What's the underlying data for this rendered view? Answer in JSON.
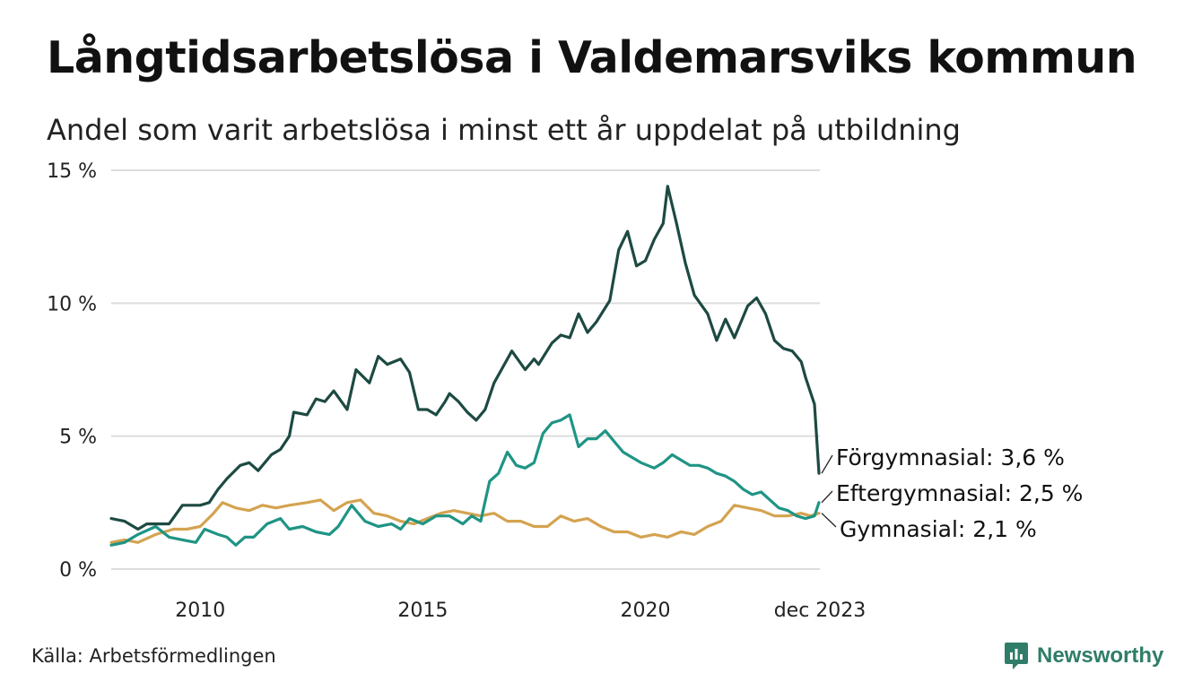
{
  "title": "Långtidsarbetslösa i Valdemarsviks kommun",
  "subtitle": "Andel som varit arbetslösa i minst ett år uppdelat på utbildning",
  "source": "Källa: Arbetsförmedlingen",
  "brand": "Newsworthy",
  "colors": {
    "forgymnasial": "#1d4a42",
    "eftergymnasial": "#1f9485",
    "gymnasial": "#d4a350",
    "grid": "#dddddd",
    "brand": "#2f7d68"
  },
  "chart_data": {
    "type": "line",
    "title": "Långtidsarbetslösa i Valdemarsviks kommun",
    "subtitle": "Andel som varit arbetslösa i minst ett år uppdelat på utbildning",
    "x_range": [
      2008.0,
      2023.92
    ],
    "ylim": [
      0,
      15
    ],
    "y_ticks": [
      {
        "value": 0,
        "label": "0 %"
      },
      {
        "value": 5,
        "label": "5 %"
      },
      {
        "value": 10,
        "label": "10 %"
      },
      {
        "value": 15,
        "label": "15 %"
      }
    ],
    "x_ticks": [
      {
        "value": 2010,
        "label": "2010"
      },
      {
        "value": 2015,
        "label": "2015"
      },
      {
        "value": 2020,
        "label": "2020"
      },
      {
        "value": 2023.92,
        "label": "dec 2023"
      }
    ],
    "series": [
      {
        "key": "forgymnasial",
        "name": "Förgymnasial",
        "end_label": "Förgymnasial: 3,6 %",
        "points": [
          [
            2008.0,
            1.9
          ],
          [
            2008.3,
            1.8
          ],
          [
            2008.6,
            1.5
          ],
          [
            2008.8,
            1.7
          ],
          [
            2009.3,
            1.7
          ],
          [
            2009.6,
            2.4
          ],
          [
            2010.0,
            2.4
          ],
          [
            2010.2,
            2.5
          ],
          [
            2010.4,
            3.0
          ],
          [
            2010.6,
            3.4
          ],
          [
            2010.9,
            3.9
          ],
          [
            2011.1,
            4.0
          ],
          [
            2011.3,
            3.7
          ],
          [
            2011.6,
            4.3
          ],
          [
            2011.8,
            4.5
          ],
          [
            2012.0,
            5.0
          ],
          [
            2012.1,
            5.9
          ],
          [
            2012.4,
            5.8
          ],
          [
            2012.6,
            6.4
          ],
          [
            2012.8,
            6.3
          ],
          [
            2013.0,
            6.7
          ],
          [
            2013.3,
            6.0
          ],
          [
            2013.5,
            7.5
          ],
          [
            2013.8,
            7.0
          ],
          [
            2014.0,
            8.0
          ],
          [
            2014.2,
            7.7
          ],
          [
            2014.5,
            7.9
          ],
          [
            2014.7,
            7.4
          ],
          [
            2014.9,
            6.0
          ],
          [
            2015.1,
            6.0
          ],
          [
            2015.3,
            5.8
          ],
          [
            2015.5,
            6.3
          ],
          [
            2015.6,
            6.6
          ],
          [
            2015.8,
            6.3
          ],
          [
            2016.0,
            5.9
          ],
          [
            2016.2,
            5.6
          ],
          [
            2016.4,
            6.0
          ],
          [
            2016.6,
            7.0
          ],
          [
            2016.8,
            7.6
          ],
          [
            2017.0,
            8.2
          ],
          [
            2017.3,
            7.5
          ],
          [
            2017.5,
            7.9
          ],
          [
            2017.6,
            7.7
          ],
          [
            2017.9,
            8.5
          ],
          [
            2018.1,
            8.8
          ],
          [
            2018.3,
            8.7
          ],
          [
            2018.5,
            9.6
          ],
          [
            2018.7,
            8.9
          ],
          [
            2018.9,
            9.3
          ],
          [
            2019.2,
            10.1
          ],
          [
            2019.4,
            12.0
          ],
          [
            2019.6,
            12.7
          ],
          [
            2019.8,
            11.4
          ],
          [
            2020.0,
            11.6
          ],
          [
            2020.2,
            12.4
          ],
          [
            2020.4,
            13.0
          ],
          [
            2020.5,
            14.4
          ],
          [
            2020.7,
            13.0
          ],
          [
            2020.9,
            11.5
          ],
          [
            2021.1,
            10.3
          ],
          [
            2021.4,
            9.6
          ],
          [
            2021.6,
            8.6
          ],
          [
            2021.8,
            9.4
          ],
          [
            2022.0,
            8.7
          ],
          [
            2022.3,
            9.9
          ],
          [
            2022.5,
            10.2
          ],
          [
            2022.7,
            9.6
          ],
          [
            2022.9,
            8.6
          ],
          [
            2023.1,
            8.3
          ],
          [
            2023.3,
            8.2
          ],
          [
            2023.5,
            7.8
          ],
          [
            2023.6,
            7.2
          ],
          [
            2023.8,
            6.2
          ],
          [
            2023.9,
            3.6
          ]
        ]
      },
      {
        "key": "eftergymnasial",
        "name": "Eftergymnasial",
        "end_label": "Eftergymnasial: 2,5 %",
        "points": [
          [
            2008.0,
            0.9
          ],
          [
            2008.3,
            1.0
          ],
          [
            2008.6,
            1.3
          ],
          [
            2009.0,
            1.6
          ],
          [
            2009.3,
            1.2
          ],
          [
            2009.6,
            1.1
          ],
          [
            2009.9,
            1.0
          ],
          [
            2010.1,
            1.5
          ],
          [
            2010.4,
            1.3
          ],
          [
            2010.6,
            1.2
          ],
          [
            2010.8,
            0.9
          ],
          [
            2011.0,
            1.2
          ],
          [
            2011.2,
            1.2
          ],
          [
            2011.5,
            1.7
          ],
          [
            2011.8,
            1.9
          ],
          [
            2012.0,
            1.5
          ],
          [
            2012.3,
            1.6
          ],
          [
            2012.6,
            1.4
          ],
          [
            2012.9,
            1.3
          ],
          [
            2013.1,
            1.6
          ],
          [
            2013.4,
            2.4
          ],
          [
            2013.7,
            1.8
          ],
          [
            2014.0,
            1.6
          ],
          [
            2014.3,
            1.7
          ],
          [
            2014.5,
            1.5
          ],
          [
            2014.7,
            1.9
          ],
          [
            2015.0,
            1.7
          ],
          [
            2015.3,
            2.0
          ],
          [
            2015.6,
            2.0
          ],
          [
            2015.9,
            1.7
          ],
          [
            2016.1,
            2.0
          ],
          [
            2016.3,
            1.8
          ],
          [
            2016.5,
            3.3
          ],
          [
            2016.7,
            3.6
          ],
          [
            2016.9,
            4.4
          ],
          [
            2017.1,
            3.9
          ],
          [
            2017.3,
            3.8
          ],
          [
            2017.5,
            4.0
          ],
          [
            2017.7,
            5.1
          ],
          [
            2017.9,
            5.5
          ],
          [
            2018.1,
            5.6
          ],
          [
            2018.3,
            5.8
          ],
          [
            2018.5,
            4.6
          ],
          [
            2018.7,
            4.9
          ],
          [
            2018.9,
            4.9
          ],
          [
            2019.1,
            5.2
          ],
          [
            2019.3,
            4.8
          ],
          [
            2019.5,
            4.4
          ],
          [
            2019.7,
            4.2
          ],
          [
            2019.9,
            4.0
          ],
          [
            2020.2,
            3.8
          ],
          [
            2020.4,
            4.0
          ],
          [
            2020.6,
            4.3
          ],
          [
            2020.8,
            4.1
          ],
          [
            2021.0,
            3.9
          ],
          [
            2021.2,
            3.9
          ],
          [
            2021.4,
            3.8
          ],
          [
            2021.6,
            3.6
          ],
          [
            2021.8,
            3.5
          ],
          [
            2022.0,
            3.3
          ],
          [
            2022.2,
            3.0
          ],
          [
            2022.4,
            2.8
          ],
          [
            2022.6,
            2.9
          ],
          [
            2022.8,
            2.6
          ],
          [
            2023.0,
            2.3
          ],
          [
            2023.2,
            2.2
          ],
          [
            2023.4,
            2.0
          ],
          [
            2023.6,
            1.9
          ],
          [
            2023.8,
            2.0
          ],
          [
            2023.9,
            2.5
          ]
        ]
      },
      {
        "key": "gymnasial",
        "name": "Gymnasial",
        "end_label": "Gymnasial: 2,1 %",
        "points": [
          [
            2008.0,
            1.0
          ],
          [
            2008.3,
            1.1
          ],
          [
            2008.6,
            1.0
          ],
          [
            2009.0,
            1.3
          ],
          [
            2009.4,
            1.5
          ],
          [
            2009.7,
            1.5
          ],
          [
            2010.0,
            1.6
          ],
          [
            2010.3,
            2.1
          ],
          [
            2010.5,
            2.5
          ],
          [
            2010.8,
            2.3
          ],
          [
            2011.1,
            2.2
          ],
          [
            2011.4,
            2.4
          ],
          [
            2011.7,
            2.3
          ],
          [
            2012.0,
            2.4
          ],
          [
            2012.4,
            2.5
          ],
          [
            2012.7,
            2.6
          ],
          [
            2013.0,
            2.2
          ],
          [
            2013.3,
            2.5
          ],
          [
            2013.6,
            2.6
          ],
          [
            2013.9,
            2.1
          ],
          [
            2014.2,
            2.0
          ],
          [
            2014.5,
            1.8
          ],
          [
            2014.8,
            1.7
          ],
          [
            2015.1,
            1.9
          ],
          [
            2015.4,
            2.1
          ],
          [
            2015.7,
            2.2
          ],
          [
            2016.0,
            2.1
          ],
          [
            2016.3,
            2.0
          ],
          [
            2016.6,
            2.1
          ],
          [
            2016.9,
            1.8
          ],
          [
            2017.2,
            1.8
          ],
          [
            2017.5,
            1.6
          ],
          [
            2017.8,
            1.6
          ],
          [
            2018.1,
            2.0
          ],
          [
            2018.4,
            1.8
          ],
          [
            2018.7,
            1.9
          ],
          [
            2019.0,
            1.6
          ],
          [
            2019.3,
            1.4
          ],
          [
            2019.6,
            1.4
          ],
          [
            2019.9,
            1.2
          ],
          [
            2020.2,
            1.3
          ],
          [
            2020.5,
            1.2
          ],
          [
            2020.8,
            1.4
          ],
          [
            2021.1,
            1.3
          ],
          [
            2021.4,
            1.6
          ],
          [
            2021.7,
            1.8
          ],
          [
            2022.0,
            2.4
          ],
          [
            2022.3,
            2.3
          ],
          [
            2022.6,
            2.2
          ],
          [
            2022.9,
            2.0
          ],
          [
            2023.2,
            2.0
          ],
          [
            2023.5,
            2.1
          ],
          [
            2023.7,
            2.0
          ],
          [
            2023.9,
            2.1
          ]
        ]
      }
    ]
  }
}
